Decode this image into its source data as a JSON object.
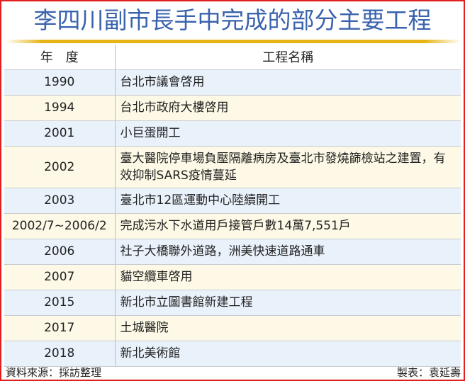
{
  "title": "李四川副市長手中完成的部分主要工程",
  "headers": {
    "year": "年　度",
    "project": "工程名稱"
  },
  "rows": [
    {
      "year": "1990",
      "project": "台北市議會啓用"
    },
    {
      "year": "1994",
      "project": "台北市政府大樓啓用"
    },
    {
      "year": "2001",
      "project": "小巨蛋開工"
    },
    {
      "year": "2002",
      "project": "臺大醫院停車場負壓隔離病房及臺北市發燒篩檢站之建置，有效抑制SARS疫情蔓延"
    },
    {
      "year": "2003",
      "project": "臺北市12區運動中心陸續開工"
    },
    {
      "year": "2002/7~2006/2",
      "project": "完成污水下水道用戶接管戶數14萬7,551戶"
    },
    {
      "year": "2006",
      "project": "社子大橋聯外道路，洲美快速道路通車"
    },
    {
      "year": "2007",
      "project": "貓空纜車啓用"
    },
    {
      "year": "2015",
      "project": "新北市立圖書館新建工程"
    },
    {
      "year": "2017",
      "project": "土城醫院"
    },
    {
      "year": "2018",
      "project": "新北美術館"
    }
  ],
  "footer": {
    "source": "資料來源：採訪整理",
    "credit": "製表：袁延壽"
  },
  "colors": {
    "title": "#3a63ad",
    "rule": "#e6b414",
    "row_blue": "#e9f2fb",
    "row_cream": "#fdf9e6",
    "border": "#e02020"
  }
}
